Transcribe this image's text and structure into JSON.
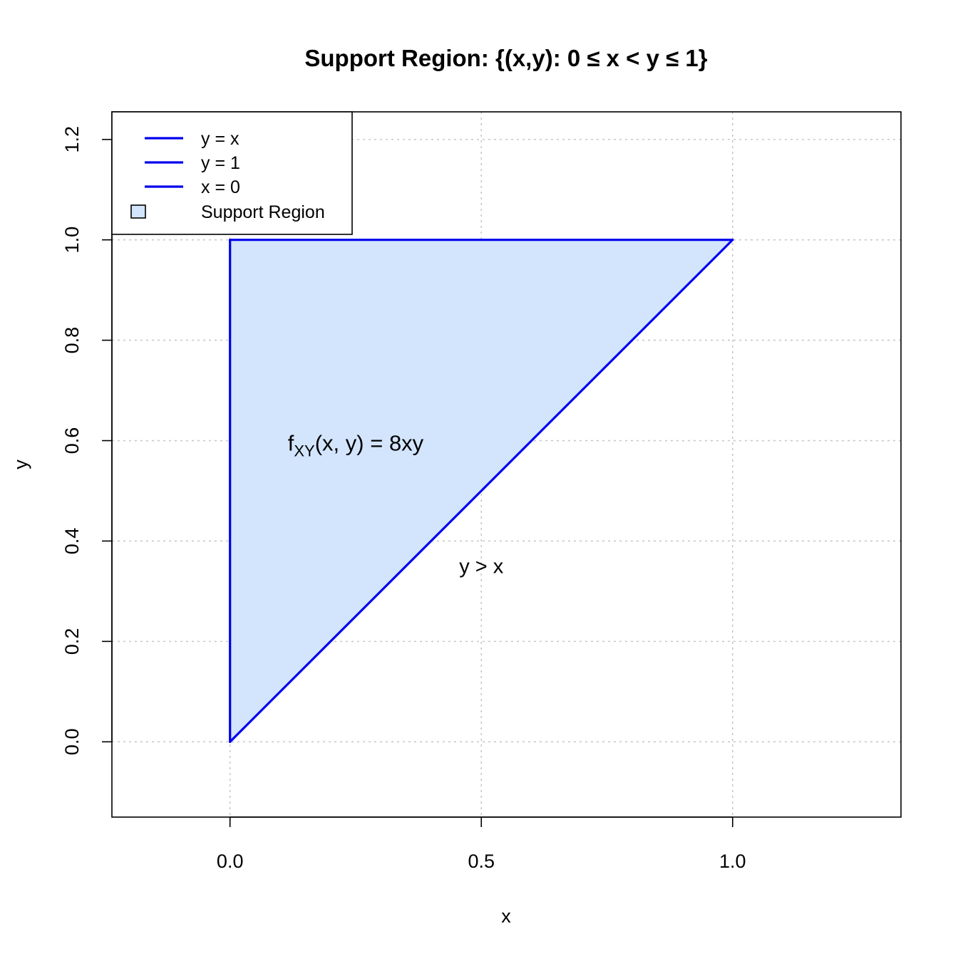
{
  "chart_data": {
    "type": "area",
    "title": "Support Region: {(x,y): 0 ≤ x < y ≤ 1}",
    "xlabel": "x",
    "ylabel": "y",
    "xlim": [
      -0.235,
      1.335
    ],
    "ylim": [
      -0.15,
      1.255
    ],
    "xticks": [
      0.0,
      0.5,
      1.0
    ],
    "xtick_labels": [
      "0.0",
      "0.5",
      "1.0"
    ],
    "yticks": [
      0.0,
      0.2,
      0.4,
      0.6,
      0.8,
      1.0,
      1.2
    ],
    "ytick_labels": [
      "0.0",
      "0.2",
      "0.4",
      "0.6",
      "0.8",
      "1.0",
      "1.2"
    ],
    "grid": true,
    "legend_position": "top-left",
    "region": {
      "name": "Support Region",
      "vertices": [
        [
          0,
          0
        ],
        [
          0,
          1
        ],
        [
          1,
          1
        ]
      ],
      "fill_color": "#d3e5fd",
      "stroke_color": "#0000ee"
    },
    "series": [
      {
        "name": "y = x",
        "x": [
          0,
          1
        ],
        "y": [
          0,
          1
        ],
        "color": "#0000ee"
      },
      {
        "name": "y = 1",
        "x": [
          0,
          1
        ],
        "y": [
          1,
          1
        ],
        "color": "#0000ee"
      },
      {
        "name": "x = 0",
        "x": [
          0,
          0
        ],
        "y": [
          0,
          1
        ],
        "color": "#0000ee"
      }
    ],
    "annotations": [
      {
        "id": "density",
        "x": 0.25,
        "y": 0.6,
        "base": "f",
        "subscript": "XY",
        "args": "(x, y)",
        "rest": " = 8xy"
      },
      {
        "id": "ineq",
        "x": 0.5,
        "y": 0.35,
        "text": "y > x"
      }
    ],
    "colors": {
      "line": "#0000ee",
      "fill": "#d3e5fd",
      "grid": "#c8c8c8",
      "frame": "#000000"
    }
  }
}
